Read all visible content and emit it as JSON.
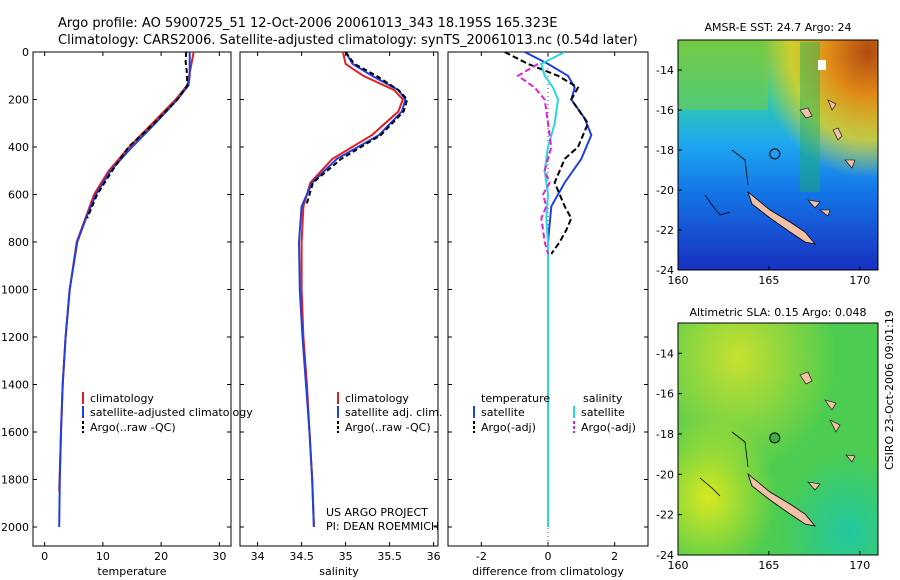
{
  "header": {
    "line1": "Argo profile: AO 5900725_51 12-Oct-2006 20061013_343 18.195S 165.323E",
    "line2": "Climatology: CARS2006. Satellite-adjusted climatology: synTS_20061013.nc (0.54d later)"
  },
  "footer": {
    "project": "US ARGO PROJECT",
    "pi": "PI: DEAN ROEMMICH",
    "credit": "CSIRO 23-Oct-2006 09:01:19"
  },
  "colors": {
    "climatology": "#e02020",
    "satellite": "#1f3fe0",
    "argo": "#000000",
    "sat_salinity": "#28d8e0",
    "argo_salinity": "#e020e0"
  },
  "chart_data": [
    {
      "type": "line",
      "xlabel": "temperature",
      "ylabel": "",
      "xlim": [
        -2,
        32
      ],
      "ylim": [
        2080,
        0
      ],
      "xticks": [
        0,
        10,
        20,
        30
      ],
      "yticks": [
        0,
        200,
        400,
        600,
        800,
        1000,
        1200,
        1400,
        1600,
        1800,
        2000
      ],
      "legend": [
        "climatology",
        "satellite-adjusted climatology",
        "Argo(..raw -QC)"
      ],
      "series": [
        {
          "name": "climatology",
          "color": "#e02020",
          "dash": "",
          "x": [
            25.6,
            25.2,
            24.8,
            24.5,
            22.5,
            18.5,
            14.5,
            11.0,
            8.5,
            7.0,
            5.5,
            4.3,
            3.6,
            3.1,
            2.8,
            2.5
          ],
          "y": [
            0,
            50,
            100,
            140,
            200,
            300,
            400,
            500,
            600,
            700,
            800,
            1000,
            1200,
            1400,
            1600,
            1850
          ]
        },
        {
          "name": "satellite-adjusted climatology",
          "color": "#1f3fe0",
          "dash": "",
          "x": [
            24.9,
            24.9,
            24.9,
            24.7,
            22.8,
            19.0,
            15.0,
            11.3,
            8.8,
            7.1,
            5.6,
            4.3,
            3.6,
            3.1,
            2.8,
            2.6,
            2.5
          ],
          "y": [
            0,
            50,
            100,
            140,
            200,
            300,
            400,
            500,
            600,
            700,
            800,
            1000,
            1200,
            1400,
            1600,
            1800,
            2000
          ]
        },
        {
          "name": "Argo(..raw -QC)",
          "color": "#000000",
          "dash": "5,3",
          "x": [
            24.3,
            24.2,
            24.4,
            24.5,
            22.8,
            18.8,
            14.4,
            11.6,
            9.0,
            7.3
          ],
          "y": [
            0,
            40,
            80,
            140,
            200,
            300,
            400,
            500,
            600,
            700
          ]
        }
      ]
    },
    {
      "type": "line",
      "xlabel": "salinity",
      "ylabel": "",
      "xlim": [
        33.8,
        36.05
      ],
      "ylim": [
        2080,
        0
      ],
      "xticks": [
        34,
        34.5,
        35,
        35.5,
        36
      ],
      "legend": [
        "climatology",
        "satellite adj. clim.",
        "Argo(..raw -QC)"
      ],
      "series": [
        {
          "name": "climatology",
          "color": "#e02020",
          "dash": "",
          "x": [
            34.97,
            35.0,
            35.2,
            35.55,
            35.65,
            35.6,
            35.3,
            34.85,
            34.6,
            34.52,
            34.5,
            34.5,
            34.52,
            34.56,
            34.59,
            34.62,
            34.64
          ],
          "y": [
            0,
            50,
            100,
            160,
            200,
            250,
            350,
            450,
            550,
            650,
            800,
            1000,
            1200,
            1400,
            1600,
            1800,
            2000
          ]
        },
        {
          "name": "satellite adj. clim.",
          "color": "#1f3fe0",
          "dash": "",
          "x": [
            35.0,
            35.08,
            35.3,
            35.6,
            35.68,
            35.64,
            35.38,
            34.9,
            34.62,
            34.5,
            34.47,
            34.48,
            34.51,
            34.55,
            34.59,
            34.62,
            34.64
          ],
          "y": [
            0,
            50,
            100,
            160,
            200,
            250,
            350,
            450,
            550,
            650,
            800,
            1000,
            1200,
            1400,
            1600,
            1800,
            2000
          ]
        },
        {
          "name": "Argo(..raw -QC)",
          "color": "#000000",
          "dash": "5,3",
          "x": [
            35.0,
            35.1,
            35.35,
            35.6,
            35.7,
            35.66,
            35.4,
            34.95,
            34.63,
            34.55
          ],
          "y": [
            0,
            50,
            100,
            160,
            200,
            250,
            350,
            450,
            550,
            650
          ]
        }
      ]
    },
    {
      "type": "line",
      "xlabel": "difference from climatology",
      "ylabel": "",
      "xlim": [
        -3,
        3
      ],
      "ylim": [
        2080,
        0
      ],
      "xticks": [
        -2,
        0,
        2
      ],
      "legend_groups": [
        {
          "title": "temperature",
          "items": [
            "satellite",
            "Argo(-adj)"
          ]
        },
        {
          "title": "salinity",
          "items": [
            "satellite",
            "Argo(-adj)"
          ]
        }
      ],
      "series": [
        {
          "name": "satellite",
          "group": "temperature",
          "color": "#1f3fe0",
          "dash": "",
          "x": [
            -0.7,
            0.0,
            0.6,
            0.8,
            0.7,
            1.1,
            1.3,
            1.0,
            0.5,
            0.1,
            0.0,
            0.0,
            0.0,
            0.0,
            0.0
          ],
          "y": [
            0,
            50,
            100,
            150,
            200,
            280,
            350,
            450,
            550,
            650,
            800,
            1000,
            1400,
            1800,
            2000
          ]
        },
        {
          "name": "Argo(-adj)",
          "group": "temperature",
          "color": "#000000",
          "dash": "6,3",
          "x": [
            -1.3,
            -0.6,
            0.3,
            0.9,
            0.7,
            1.2,
            0.9,
            0.5,
            0.2,
            0.5,
            0.7,
            0.55,
            0.35,
            0.1
          ],
          "y": [
            0,
            50,
            100,
            150,
            200,
            300,
            400,
            450,
            550,
            650,
            700,
            750,
            800,
            850
          ]
        },
        {
          "name": "satellite",
          "group": "salinity",
          "color": "#28d8e0",
          "dash": "",
          "x": [
            0.5,
            -0.2,
            -0.1,
            0.15,
            0.3,
            0.2,
            0.0,
            -0.1,
            0.0,
            -0.05,
            0.0,
            0.0,
            0.0,
            0.0
          ],
          "y": [
            0,
            50,
            100,
            150,
            200,
            300,
            400,
            500,
            600,
            700,
            800,
            1000,
            1400,
            2000
          ]
        },
        {
          "name": "Argo(-adj)",
          "group": "salinity",
          "color": "#e020e0",
          "dash": "6,3",
          "x": [
            -0.3,
            -0.9,
            -0.4,
            -0.1,
            0.0,
            0.1,
            -0.1,
            0.05,
            -0.15,
            -0.05,
            -0.2,
            -0.1,
            0.0
          ],
          "y": [
            50,
            100,
            150,
            200,
            300,
            400,
            500,
            550,
            600,
            650,
            700,
            800,
            850
          ]
        }
      ]
    },
    {
      "type": "heatmap",
      "title": "AMSR-E SST: 24.7 Argo: 24",
      "xlim": [
        160,
        171
      ],
      "ylim": [
        -24,
        -12.5
      ],
      "xticks": [
        160,
        165,
        170
      ],
      "yticks": [
        -24,
        -22,
        -20,
        -18,
        -16,
        -14
      ],
      "float_position": {
        "lon": 165.323,
        "lat": -18.195
      }
    },
    {
      "type": "heatmap",
      "title": "Altimetric SLA: 0.15 Argo: 0.048",
      "xlim": [
        160,
        171
      ],
      "ylim": [
        -24,
        -12.5
      ],
      "xticks": [
        160,
        165,
        170
      ],
      "yticks": [
        -24,
        -22,
        -20,
        -18,
        -16,
        -14
      ],
      "float_position": {
        "lon": 165.323,
        "lat": -18.195
      }
    }
  ]
}
